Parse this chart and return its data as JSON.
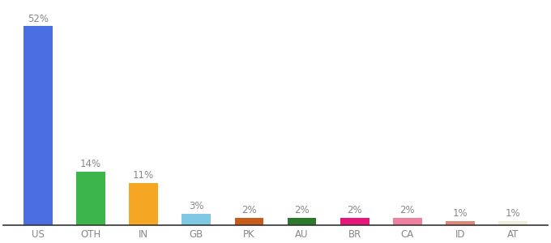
{
  "categories": [
    "US",
    "OTH",
    "IN",
    "GB",
    "PK",
    "AU",
    "BR",
    "CA",
    "ID",
    "AT"
  ],
  "values": [
    52,
    14,
    11,
    3,
    2,
    2,
    2,
    2,
    1,
    1
  ],
  "labels": [
    "52%",
    "14%",
    "11%",
    "3%",
    "2%",
    "2%",
    "2%",
    "2%",
    "1%",
    "1%"
  ],
  "bar_colors": [
    "#4A6FE3",
    "#3CB54A",
    "#F5A623",
    "#7EC8E3",
    "#C85A1A",
    "#2A7A2A",
    "#E8157A",
    "#F080A0",
    "#E08878",
    "#F0EDD8"
  ],
  "background_color": "#ffffff",
  "ylim": [
    0,
    58
  ],
  "label_fontsize": 8.5,
  "tick_fontsize": 8.5,
  "label_color": "#888888",
  "tick_color": "#888888",
  "bar_width": 0.55
}
